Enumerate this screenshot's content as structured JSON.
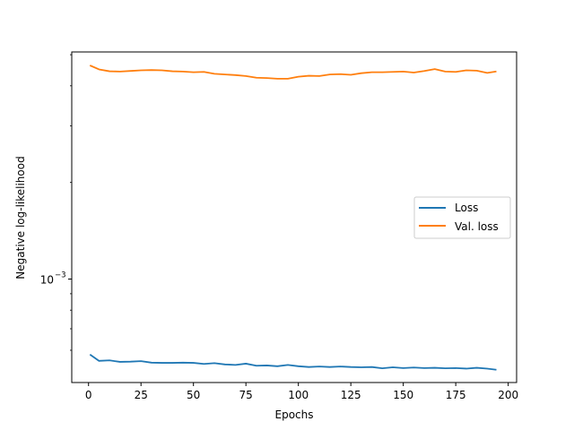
{
  "chart_data": {
    "type": "line",
    "xlabel": "Epochs",
    "ylabel": "Negative log-likelihood",
    "yscale": "log",
    "xlim": [
      -8,
      204
    ],
    "ylim": [
      0.000476,
      0.0051
    ],
    "xticks": [
      0,
      25,
      50,
      75,
      100,
      125,
      150,
      175,
      200
    ],
    "xtick_labels": [
      "0",
      "25",
      "50",
      "75",
      "100",
      "125",
      "150",
      "175",
      "200"
    ],
    "ytick_major": [
      0.001
    ],
    "ytick_major_labels": [
      "10",
      "−3"
    ],
    "ytick_minor": [
      0.0006,
      0.0007,
      0.0008,
      0.0009,
      0.002,
      0.003,
      0.004,
      0.005
    ],
    "grid": false,
    "legend_position": "center-right",
    "series": [
      {
        "name": "Loss",
        "color": "#1f77b4",
        "x": [
          1,
          5,
          10,
          15,
          20,
          25,
          30,
          35,
          40,
          45,
          50,
          55,
          60,
          65,
          70,
          75,
          80,
          85,
          90,
          95,
          100,
          105,
          110,
          115,
          120,
          125,
          130,
          135,
          140,
          145,
          150,
          155,
          160,
          165,
          170,
          175,
          180,
          185,
          190,
          194
        ],
        "y": [
          0.00058,
          0.000556,
          0.000558,
          0.000552,
          0.000553,
          0.000555,
          0.000549,
          0.000548,
          0.000548,
          0.000549,
          0.000548,
          0.000544,
          0.000547,
          0.000542,
          0.00054,
          0.000545,
          0.000537,
          0.000538,
          0.000535,
          0.00054,
          0.000535,
          0.000532,
          0.000534,
          0.000532,
          0.000534,
          0.000532,
          0.000531,
          0.000532,
          0.000527,
          0.000531,
          0.000528,
          0.00053,
          0.000528,
          0.000529,
          0.000527,
          0.000528,
          0.000526,
          0.000529,
          0.000526,
          0.000522
        ]
      },
      {
        "name": "Val. loss",
        "color": "#ff7f0e",
        "x": [
          1,
          5,
          10,
          15,
          20,
          25,
          30,
          35,
          40,
          45,
          50,
          55,
          60,
          65,
          70,
          75,
          80,
          85,
          90,
          95,
          100,
          105,
          110,
          115,
          120,
          125,
          130,
          135,
          140,
          145,
          150,
          155,
          160,
          165,
          170,
          175,
          180,
          185,
          190,
          194
        ],
        "y": [
          0.00462,
          0.0045,
          0.00444,
          0.00443,
          0.00445,
          0.00447,
          0.00448,
          0.00447,
          0.00444,
          0.00443,
          0.00441,
          0.00442,
          0.00436,
          0.00434,
          0.00432,
          0.00429,
          0.00424,
          0.00423,
          0.00421,
          0.00421,
          0.00427,
          0.0043,
          0.00429,
          0.00434,
          0.00435,
          0.00433,
          0.00438,
          0.00441,
          0.00441,
          0.00442,
          0.00443,
          0.0044,
          0.00445,
          0.00451,
          0.00443,
          0.00442,
          0.00447,
          0.00446,
          0.00439,
          0.00443
        ]
      }
    ]
  }
}
